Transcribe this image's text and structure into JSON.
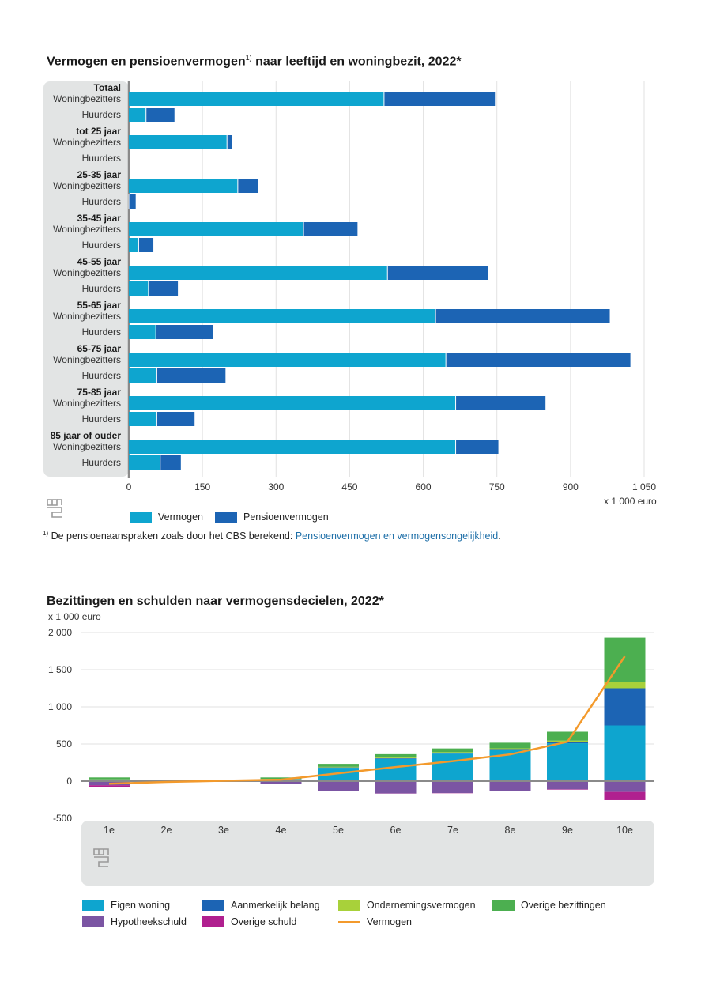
{
  "chart1": {
    "title": "Vermogen en pensioenvermogen",
    "title_sup": "1)",
    "title_rest": " naar leeftijd en woningbezit, 2022*",
    "unit": "x 1 000 euro",
    "footnote_sup": "1)",
    "footnote_text": " De pensioenaanspraken zoals door het CBS berekend: ",
    "footnote_link": "Pensioenvermogen en vermogensongelijkheid",
    "footnote_end": ".",
    "legend": [
      {
        "label": "Vermogen",
        "color": "#0ea5cf"
      },
      {
        "label": "Pensioenvermogen",
        "color": "#1c64b4"
      }
    ]
  },
  "chart2": {
    "title": "Bezittingen en schulden naar vermogensdecielen, 2022*",
    "unit": "x 1 000 euro",
    "legend": [
      {
        "label": "Eigen woning",
        "color": "#0ea5cf",
        "kind": "box"
      },
      {
        "label": "Aanmerkelijk belang",
        "color": "#1c64b4",
        "kind": "box"
      },
      {
        "label": "Ondernemingsvermogen",
        "color": "#a8d13a",
        "kind": "box"
      },
      {
        "label": "Overige bezittingen",
        "color": "#4caf50",
        "kind": "box"
      },
      {
        "label": "Hypotheekschuld",
        "color": "#7b55a3",
        "kind": "box"
      },
      {
        "label": "Overige schuld",
        "color": "#b0208f",
        "kind": "box"
      },
      {
        "label": "Vermogen",
        "color": "#f39a2c",
        "kind": "line"
      }
    ]
  },
  "chart_data": [
    {
      "type": "bar",
      "orientation": "horizontal",
      "stacked": true,
      "title": "Vermogen en pensioenvermogen 1) naar leeftijd en woningbezit, 2022*",
      "xlabel": "x 1 000 euro",
      "xlim": [
        0,
        1050
      ],
      "xticks": [
        "0",
        "150",
        "300",
        "450",
        "600",
        "750",
        "900",
        "1 050"
      ],
      "grid": true,
      "legend_position": "bottom",
      "groups": [
        "Totaal",
        "tot 25 jaar",
        "25-35 jaar",
        "35-45 jaar",
        "45-55 jaar",
        "55-65 jaar",
        "65-75 jaar",
        "75-85 jaar",
        "85 jaar of ouder"
      ],
      "categories": [
        "Woningbezitters",
        "Huurders"
      ],
      "series": [
        {
          "name": "Vermogen",
          "color": "#0ea5cf",
          "values": [
            [
              520,
              35
            ],
            [
              200,
              0
            ],
            [
              222,
              0
            ],
            [
              356,
              20
            ],
            [
              527,
              40
            ],
            [
              625,
              55
            ],
            [
              646,
              57
            ],
            [
              666,
              57
            ],
            [
              666,
              64
            ]
          ]
        },
        {
          "name": "Pensioenvermogen",
          "color": "#1c64b4",
          "values": [
            [
              226,
              58
            ],
            [
              10,
              0
            ],
            [
              42,
              14
            ],
            [
              110,
              30
            ],
            [
              205,
              60
            ],
            [
              355,
              117
            ],
            [
              376,
              140
            ],
            [
              183,
              77
            ],
            [
              87,
              42
            ]
          ]
        }
      ]
    },
    {
      "type": "bar",
      "stacked": true,
      "title": "Bezittingen en schulden naar vermogensdecielen, 2022*",
      "ylabel": "x 1 000 euro",
      "ylim": [
        -500,
        2000
      ],
      "yticks": [
        "2 000",
        "1 500",
        "1 000",
        "500",
        "0",
        "-500"
      ],
      "grid": true,
      "legend_position": "bottom",
      "categories": [
        "1e",
        "2e",
        "3e",
        "4e",
        "5e",
        "6e",
        "7e",
        "8e",
        "9e",
        "10e"
      ],
      "series": [
        {
          "name": "Eigen woning",
          "color": "#0ea5cf",
          "values": [
            20,
            3,
            4,
            25,
            180,
            300,
            370,
            420,
            510,
            750
          ]
        },
        {
          "name": "Aanmerkelijk belang",
          "color": "#1c64b4",
          "values": [
            3,
            1,
            1,
            3,
            5,
            8,
            10,
            12,
            20,
            500
          ]
        },
        {
          "name": "Ondernemingsvermogen",
          "color": "#a8d13a",
          "values": [
            2,
            1,
            1,
            2,
            8,
            10,
            10,
            10,
            15,
            80
          ]
        },
        {
          "name": "Overige bezittingen",
          "color": "#4caf50",
          "values": [
            25,
            6,
            10,
            20,
            40,
            45,
            50,
            75,
            120,
            600
          ]
        },
        {
          "name": "Hypotheekschuld",
          "color": "#7b55a3",
          "values": [
            -55,
            -5,
            -3,
            -35,
            -130,
            -165,
            -160,
            -130,
            -110,
            -145
          ]
        },
        {
          "name": "Overige schuld",
          "color": "#b0208f",
          "values": [
            -30,
            -2,
            -1,
            -3,
            -3,
            -2,
            -3,
            -3,
            -5,
            -110
          ]
        },
        {
          "name": "Vermogen",
          "color": "#f39a2c",
          "kind": "line",
          "values": [
            -35,
            -10,
            5,
            20,
            105,
            190,
            270,
            360,
            530,
            1680
          ]
        }
      ]
    }
  ]
}
